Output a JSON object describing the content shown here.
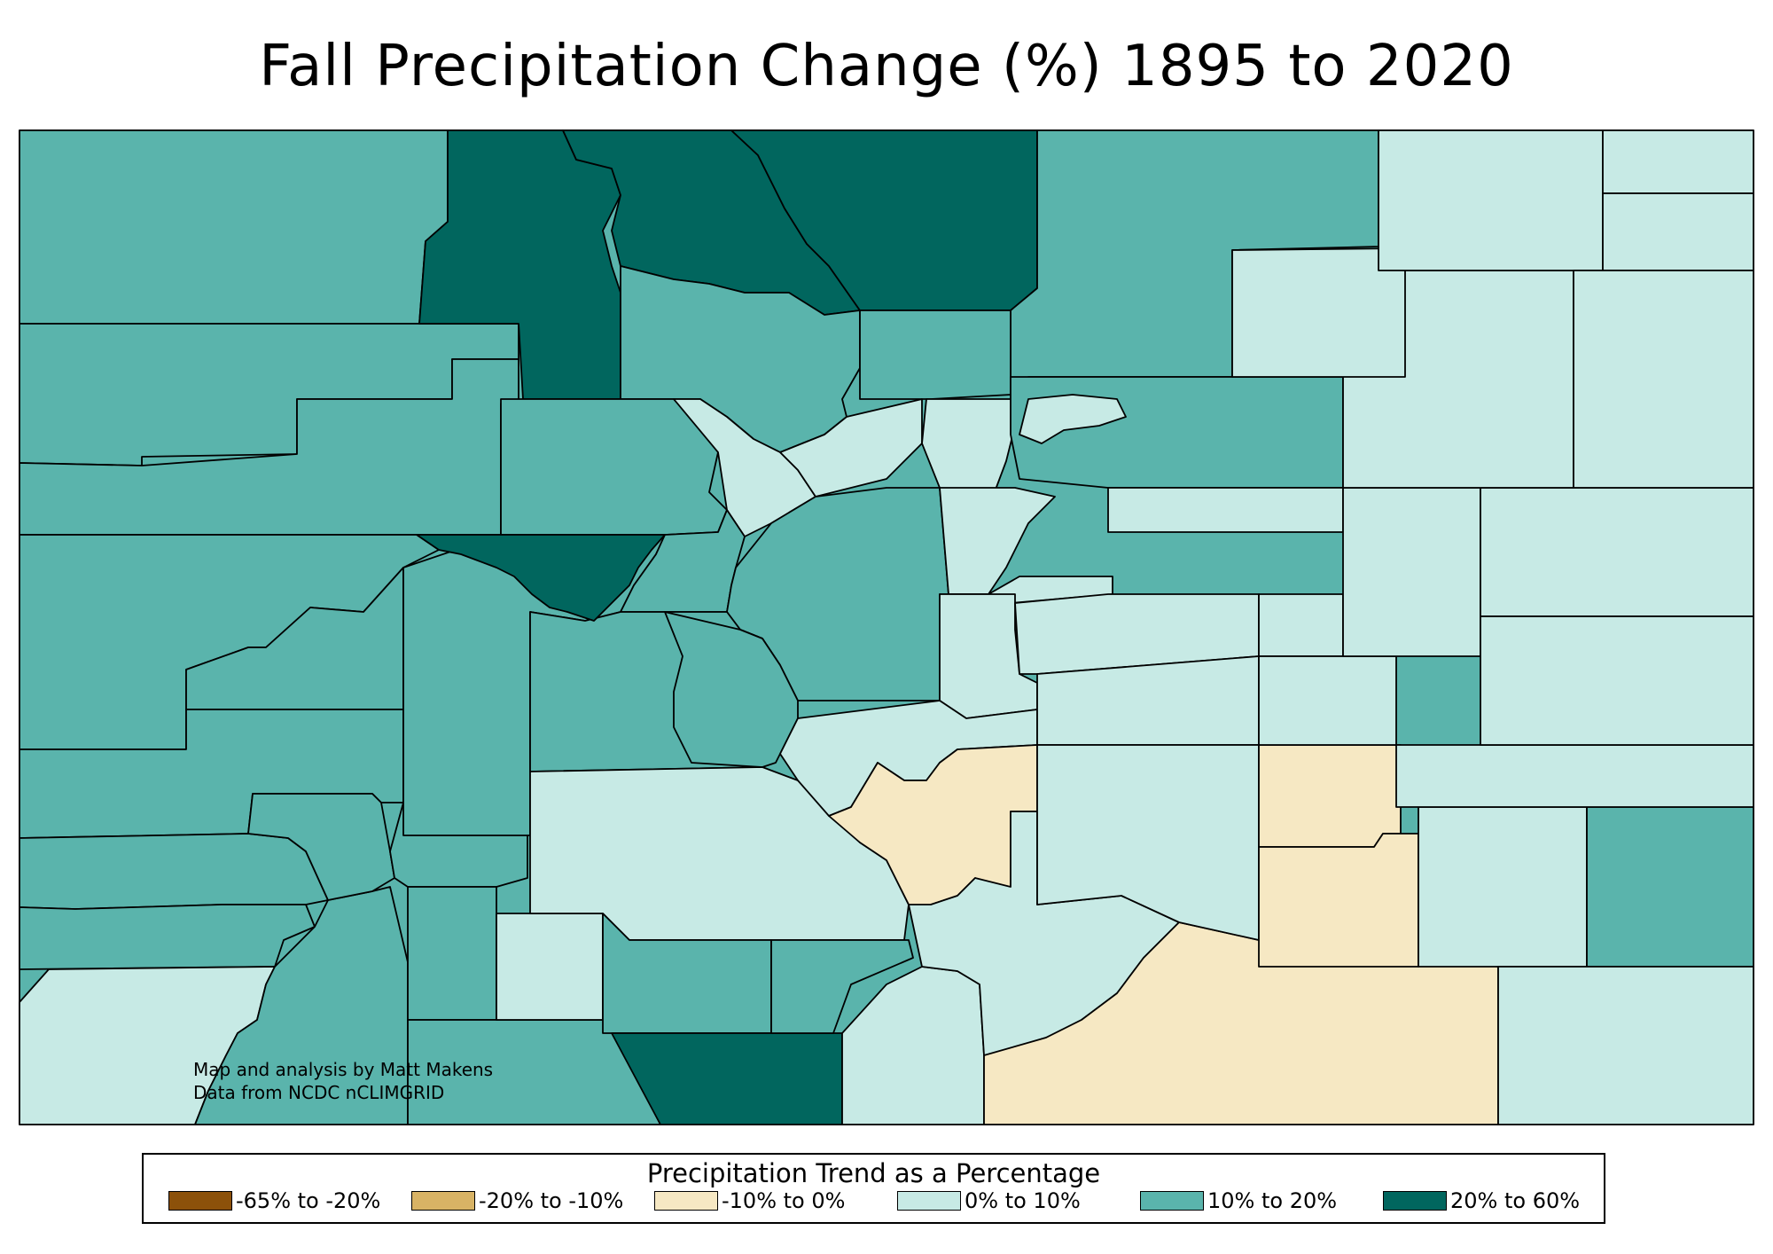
{
  "title": "Fall Precipitation Change (%) 1895 to 2020",
  "credits": {
    "line1": "Map and analysis by Matt Makens",
    "line2": "Data from NCDC nCLIMGRID"
  },
  "colors": {
    "c1": "#8c510a",
    "c2": "#d8b365",
    "c3": "#f6e8c3",
    "c4": "#c7eae5",
    "c5": "#5ab4ac",
    "c6": "#01665e"
  },
  "legend": {
    "title": "Precipitation Trend as a Percentage",
    "items": [
      {
        "label": "-65% to -20%",
        "color": "#8c510a"
      },
      {
        "label": "-20% to -10%",
        "color": "#d8b365"
      },
      {
        "label": "-10% to 0%",
        "color": "#f6e8c3"
      },
      {
        "label": "0% to 10%",
        "color": "#c7eae5"
      },
      {
        "label": "10% to 20%",
        "color": "#5ab4ac"
      },
      {
        "label": "20% to 60%",
        "color": "#01665e"
      }
    ]
  }
}
